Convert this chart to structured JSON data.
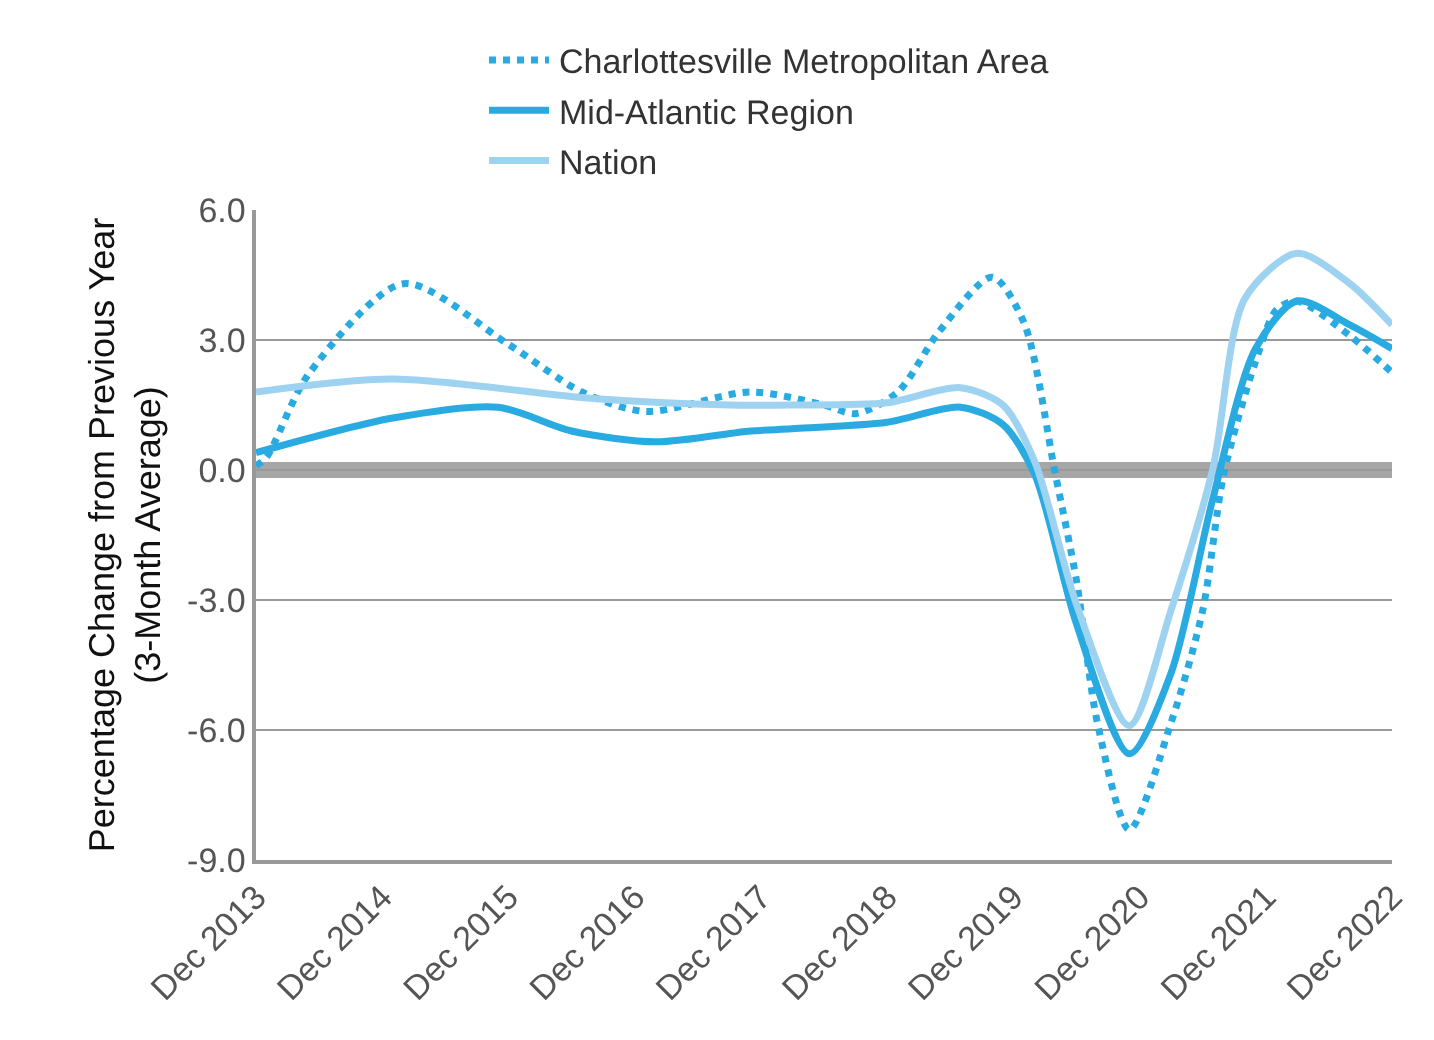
{
  "chart_data": {
    "type": "line",
    "ylabel": "Percentage Change from Previous Year\n(3-Month Average)",
    "legend": "top",
    "grid": "y",
    "xlim": [
      "2013-12",
      "2022-12"
    ],
    "xticks": [
      {
        "value": "2013-12",
        "label": "Dec 2013"
      },
      {
        "value": "2014-12",
        "label": "Dec 2014"
      },
      {
        "value": "2015-12",
        "label": "Dec 2015"
      },
      {
        "value": "2016-12",
        "label": "Dec 2016"
      },
      {
        "value": "2017-12",
        "label": "Dec 2017"
      },
      {
        "value": "2018-12",
        "label": "Dec 2018"
      },
      {
        "value": "2019-12",
        "label": "Dec 2019"
      },
      {
        "value": "2020-12",
        "label": "Dec 2020"
      },
      {
        "value": "2021-12",
        "label": "Dec 2021"
      },
      {
        "value": "2022-12",
        "label": "Dec 2022"
      }
    ],
    "ylim": [
      -9,
      6
    ],
    "yticks": [
      {
        "value": 6,
        "label": "6.0"
      },
      {
        "value": 3,
        "label": "3.0"
      },
      {
        "value": 0,
        "label": "0.0"
      },
      {
        "value": -3,
        "label": "-3.0"
      },
      {
        "value": -6,
        "label": "-6.0"
      },
      {
        "value": -9,
        "label": "-9.0"
      }
    ],
    "ref_lines": [
      {
        "axis": "y",
        "value": 0,
        "color": "#a6a6a6"
      }
    ],
    "series": [
      {
        "name": "Charlottesville Metropolitan Area",
        "color": "#29abe2",
        "line_style": "dotted",
        "x": [
          "2013-12",
          "2014-01",
          "2014-05",
          "2015-02",
          "2015-12",
          "2016-07",
          "2017-01",
          "2017-11",
          "2018-06",
          "2018-09",
          "2019-01",
          "2019-05",
          "2019-10",
          "2020-01",
          "2020-04",
          "2020-06",
          "2020-08",
          "2020-11",
          "2021-03",
          "2021-06",
          "2021-08",
          "2021-11",
          "2022-01",
          "2022-03",
          "2022-08",
          "2022-12"
        ],
        "values": [
          0.1,
          0.3,
          2.2,
          4.3,
          2.9,
          1.8,
          1.35,
          1.8,
          1.5,
          1.3,
          1.8,
          3.2,
          4.45,
          3.4,
          -0.1,
          -2.55,
          -5.85,
          -8.3,
          -5.85,
          -3.25,
          -0.1,
          2.5,
          3.7,
          3.9,
          3.1,
          2.25
        ]
      },
      {
        "name": "Mid-Atlantic Region",
        "color": "#29abe2",
        "line_style": "solid",
        "x": [
          "2013-12",
          "2015-01",
          "2015-11",
          "2016-06",
          "2017-02",
          "2017-11",
          "2018-03",
          "2018-12",
          "2019-07",
          "2019-11",
          "2020-02",
          "2020-06",
          "2020-11",
          "2021-03",
          "2021-07",
          "2021-11",
          "2022-03",
          "2022-08",
          "2022-12"
        ],
        "values": [
          0.4,
          1.2,
          1.45,
          0.9,
          0.65,
          0.9,
          0.95,
          1.1,
          1.45,
          1.05,
          -0.1,
          -3.55,
          -6.55,
          -4.7,
          -0.65,
          2.8,
          3.9,
          3.35,
          2.8
        ]
      },
      {
        "name": "Nation",
        "color": "#9dd3f0",
        "line_style": "solid",
        "x": [
          "2013-12",
          "2015-01",
          "2016-08",
          "2017-09",
          "2018-03",
          "2018-12",
          "2019-07",
          "2019-11",
          "2020-02",
          "2020-06",
          "2020-11",
          "2021-03",
          "2021-07",
          "2021-10",
          "2022-03",
          "2022-08",
          "2022-12"
        ],
        "values": [
          1.8,
          2.1,
          1.65,
          1.5,
          1.5,
          1.55,
          1.9,
          1.5,
          0.2,
          -3.1,
          -5.9,
          -3.25,
          0.05,
          3.95,
          5.0,
          4.3,
          3.35
        ]
      }
    ]
  }
}
